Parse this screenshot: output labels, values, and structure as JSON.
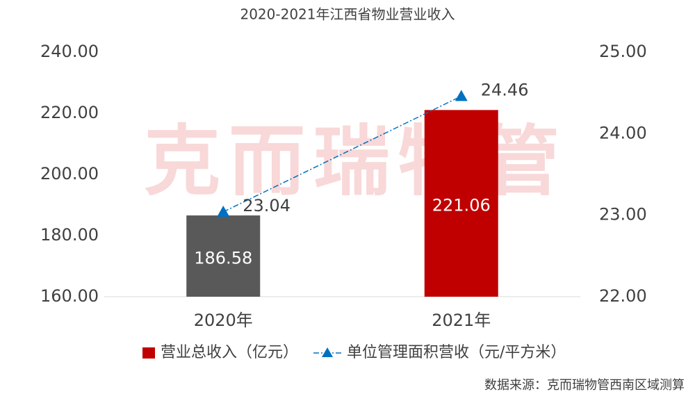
{
  "chart_data": {
    "type": "bar_line",
    "title": "2020-2021年江西省物业营业收入",
    "watermark": "克而瑞物管",
    "source": "数据来源：克而瑞物管西南区域测算",
    "categories": [
      "2020年",
      "2021年"
    ],
    "series": [
      {
        "name": "营业总收入（亿元）",
        "type": "bar",
        "color": "#c00000",
        "colors": [
          "#595959",
          "#c00000"
        ],
        "values": [
          186.58,
          221.06
        ]
      },
      {
        "name": "单位管理面积营收（元/平方米）",
        "type": "line",
        "axis": "y2",
        "color": "#0070c0",
        "values": [
          23.04,
          24.46
        ]
      }
    ],
    "ylim": [
      160,
      240
    ],
    "yticks": [
      {
        "value": 160,
        "label": "160.00"
      },
      {
        "value": 180,
        "label": "180.00"
      },
      {
        "value": 200,
        "label": "200.00"
      },
      {
        "value": 220,
        "label": "220.00"
      },
      {
        "value": 240,
        "label": "240.00"
      }
    ],
    "y2lim": [
      22,
      25
    ],
    "y2ticks": [
      {
        "value": 22,
        "label": "22.00"
      },
      {
        "value": 23,
        "label": "23.00"
      },
      {
        "value": 24,
        "label": "24.00"
      },
      {
        "value": 25,
        "label": "25.00"
      }
    ],
    "grid": false
  }
}
